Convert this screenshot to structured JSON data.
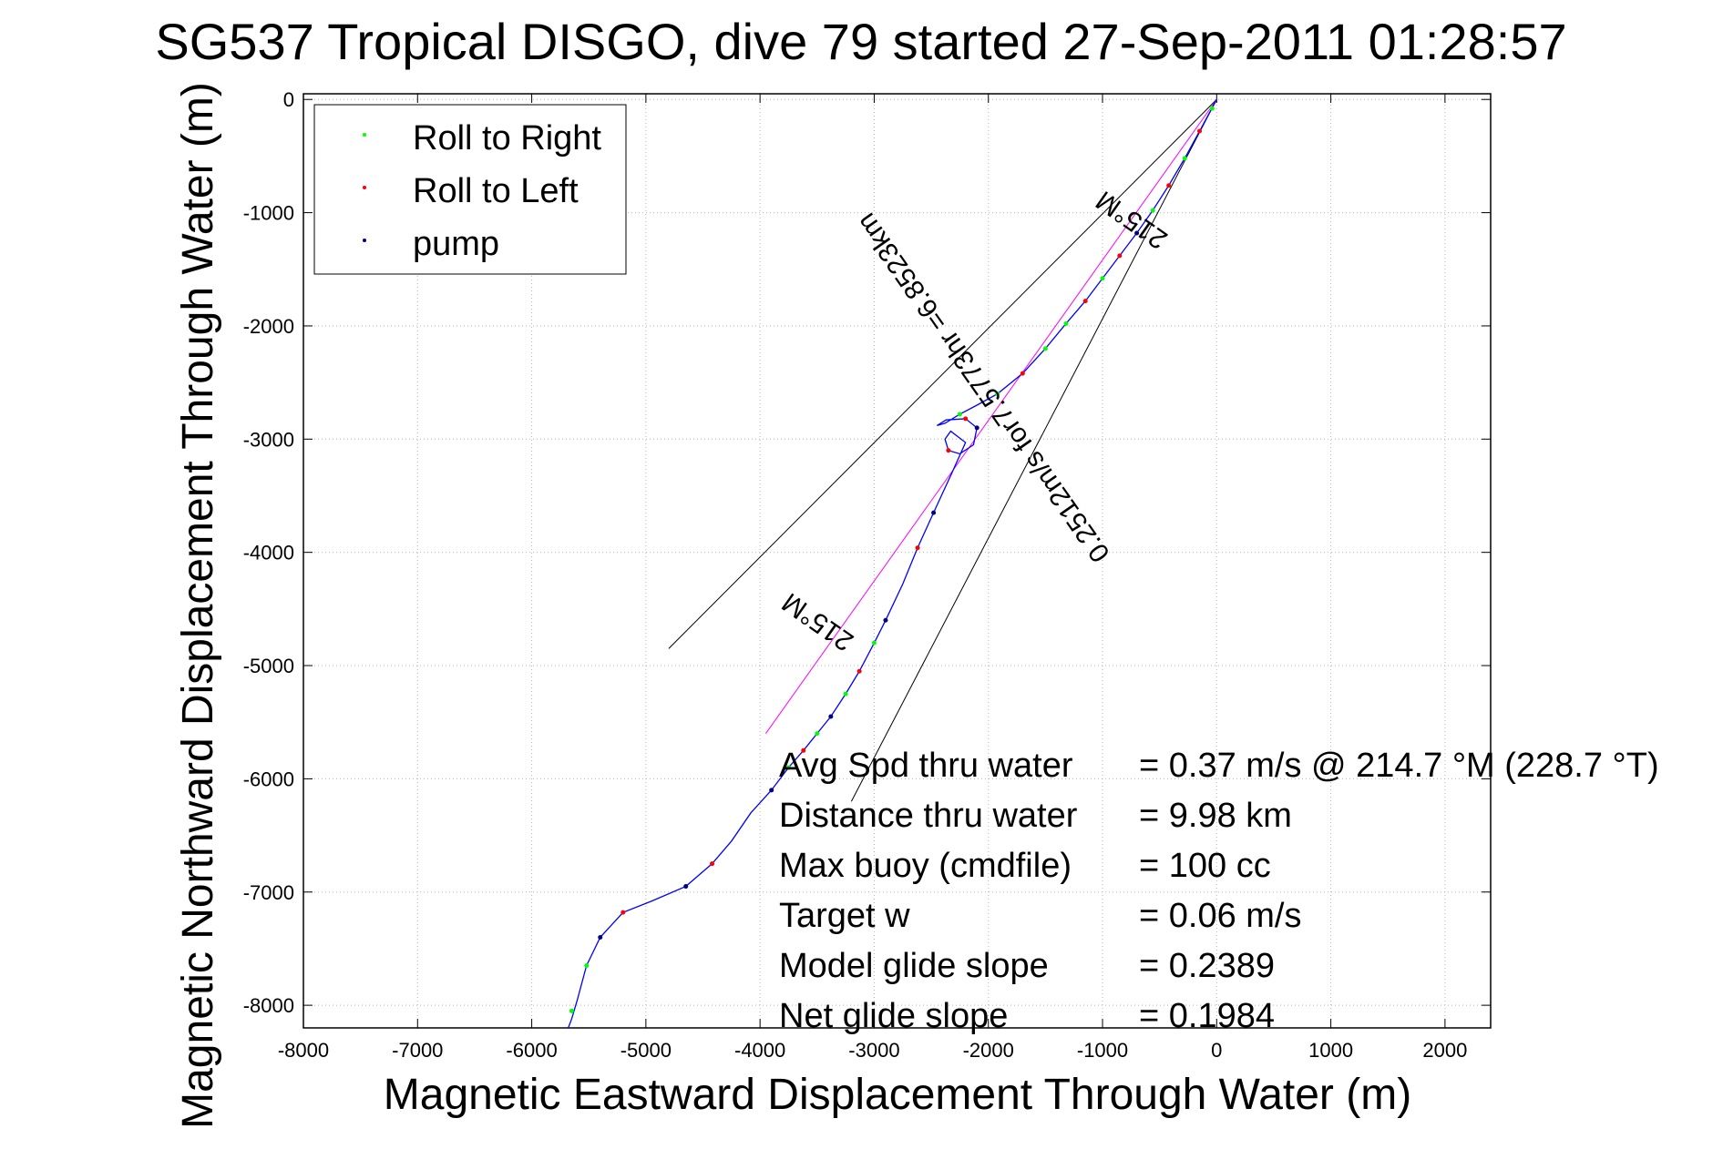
{
  "chart_data": {
    "type": "line",
    "title": "SG537 Tropical DISGO, dive 79 started 27-Sep-2011 01:28:57",
    "xlabel": "Magnetic Eastward Displacement Through Water (m)",
    "ylabel": "Magnetic Northward Displacement Through Water (m)",
    "xlim": [
      -8000,
      2400
    ],
    "ylim": [
      -8200,
      50
    ],
    "grid": true,
    "x_ticks": [
      -8000,
      -7000,
      -6000,
      -5000,
      -4000,
      -3000,
      -2000,
      -1000,
      0,
      1000,
      2000
    ],
    "y_ticks": [
      0,
      -1000,
      -2000,
      -3000,
      -4000,
      -5000,
      -6000,
      -7000,
      -8000
    ],
    "legend": {
      "placement": "top-left",
      "entries": [
        {
          "label": "Roll to Right",
          "color": "#00ff00"
        },
        {
          "label": "Roll to Left",
          "color": "#ff0000"
        },
        {
          "label": "pump",
          "color": "#000080"
        }
      ]
    },
    "series": [
      {
        "name": "track",
        "color": "#0000ff",
        "x": [
          0,
          -150,
          -280,
          -420,
          -560,
          -700,
          -850,
          -1000,
          -1150,
          -1320,
          -1500,
          -1700,
          -1920,
          -2100,
          -2250,
          -2380,
          -2450,
          -2370,
          -2200,
          -2100,
          -2130,
          -2250,
          -2350,
          -2380,
          -2330,
          -2200,
          -2320,
          -2480,
          -2620,
          -2750,
          -2900,
          -3000,
          -3130,
          -3250,
          -3380,
          -3500,
          -3620,
          -3750,
          -3900,
          -4080,
          -4250,
          -4420,
          -4650,
          -4950,
          -5200,
          -5400,
          -5520,
          -5600,
          -5650,
          -5680
        ],
        "y": [
          0,
          -280,
          -520,
          -760,
          -980,
          -1180,
          -1380,
          -1580,
          -1780,
          -1980,
          -2200,
          -2420,
          -2600,
          -2700,
          -2780,
          -2860,
          -2880,
          -2830,
          -2820,
          -2900,
          -3050,
          -3130,
          -3100,
          -3000,
          -2930,
          -3030,
          -3300,
          -3650,
          -3960,
          -4280,
          -4600,
          -4800,
          -5050,
          -5250,
          -5450,
          -5600,
          -5750,
          -5900,
          -6100,
          -6300,
          -6550,
          -6750,
          -6950,
          -7080,
          -7180,
          -7400,
          -7650,
          -7950,
          -8120,
          -8200
        ]
      },
      {
        "name": "Roll to Right",
        "color": "#00ff00",
        "x": [
          -40,
          -280,
          -560,
          -1000,
          -1320,
          -1500,
          -1920,
          -2250,
          -3000,
          -3250,
          -3500,
          -3750,
          -5520,
          -5650
        ],
        "y": [
          -80,
          -520,
          -980,
          -1580,
          -1980,
          -2200,
          -2600,
          -2780,
          -4800,
          -5250,
          -5600,
          -5900,
          -7650,
          -8050
        ]
      },
      {
        "name": "Roll to Left",
        "color": "#ff0000",
        "x": [
          -150,
          -420,
          -850,
          -1150,
          -1700,
          -2200,
          -2350,
          -2620,
          -3130,
          -3620,
          -4420,
          -5200
        ],
        "y": [
          -280,
          -760,
          -1380,
          -1780,
          -2420,
          -2820,
          -3100,
          -3960,
          -5050,
          -5750,
          -6750,
          -7180
        ]
      },
      {
        "name": "pump",
        "color": "#000080",
        "x": [
          -700,
          -2100,
          -2480,
          -2900,
          -3380,
          -3900,
          -4650,
          -5400
        ],
        "y": [
          -1180,
          -2900,
          -3650,
          -4600,
          -5450,
          -6100,
          -6950,
          -7400
        ]
      }
    ],
    "guide_lines": [
      {
        "x": [
          0,
          -4800
        ],
        "y": [
          0,
          -4850
        ],
        "color": "#000000"
      },
      {
        "x": [
          0,
          -3200
        ],
        "y": [
          0,
          -6200
        ],
        "color": "#000000"
      },
      {
        "x": [
          0,
          -3950
        ],
        "y": [
          0,
          -5600
        ],
        "color": "#ff00ff"
      }
    ],
    "annotations": [
      {
        "text": "215°M",
        "x": -700,
        "y": -1000,
        "rotation_deg": 215
      },
      {
        "text": "0.2512m/s for7.5773hr =6.8523km",
        "x": -1980,
        "y": -2500,
        "rotation_deg": 235
      },
      {
        "text": "215°M",
        "x": -3450,
        "y": -4550,
        "rotation_deg": 215
      }
    ],
    "stats": [
      {
        "label": "Avg Spd thru water",
        "value": "=  0.37 m/s @ 214.7 °M (228.7 °T)"
      },
      {
        "label": "Distance thru water",
        "value": "=  9.98 km"
      },
      {
        "label": "Max buoy (cmdfile)",
        "value": "= 100 cc"
      },
      {
        "label": "Target w",
        "value": "= 0.06 m/s"
      },
      {
        "label": "Model glide slope",
        "value": "= 0.2389"
      },
      {
        "label": "Net glide slope",
        "value": "= 0.1984"
      }
    ]
  }
}
